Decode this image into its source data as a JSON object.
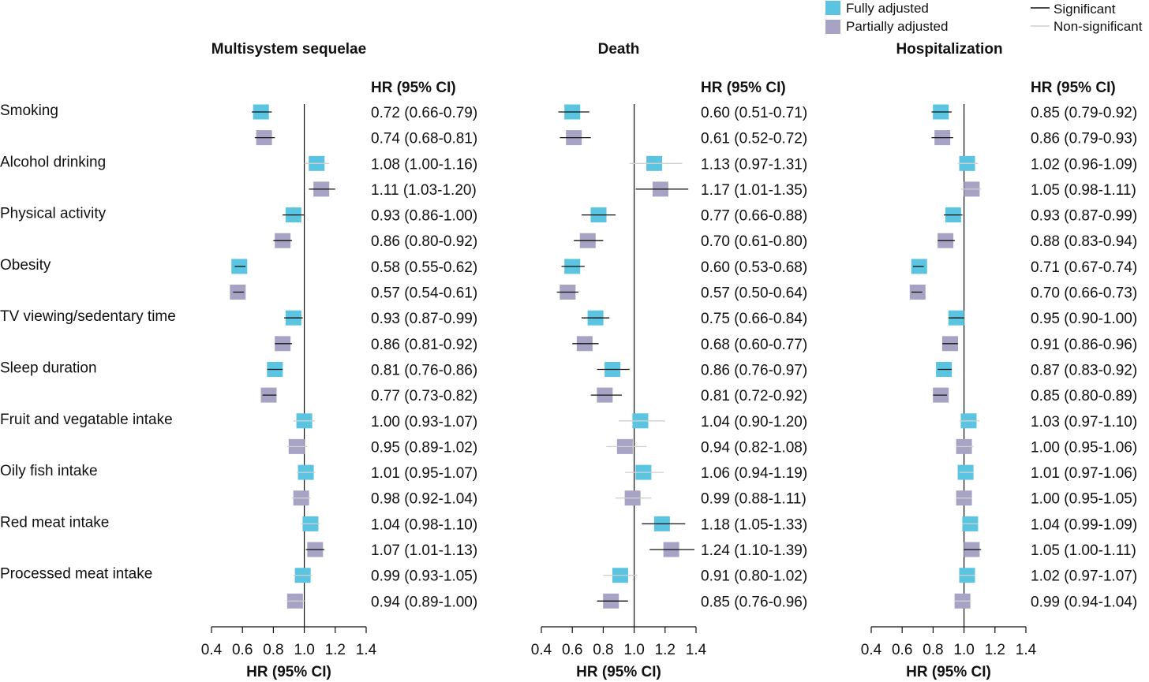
{
  "legend": {
    "fill_items": [
      {
        "label": "Fully adjusted",
        "color": "#5bc4e0"
      },
      {
        "label": "Partially adjusted",
        "color": "#a6a3c4"
      }
    ],
    "line_items": [
      {
        "label": "Significant",
        "color": "#111111"
      },
      {
        "label": "Non-significant",
        "color": "#cfcfcf"
      }
    ]
  },
  "row_labels": [
    "Smoking",
    "Alcohol drinking",
    "Physical activity",
    "Obesity",
    "TV viewing/sedentary time",
    "Sleep duration",
    "Fruit and vegatable intake",
    "Oily fish intake",
    "Red meat intake",
    "Processed meat intake"
  ],
  "chart_data": [
    {
      "type": "forest",
      "title": "Multisystem sequelae",
      "table_header": "HR (95% CI)",
      "xlabel": "HR (95% CI)",
      "xlim": [
        0.4,
        1.4
      ],
      "xticks": [
        "0.4",
        "0.6",
        "0.8",
        "1.0",
        "1.2",
        "1.4"
      ],
      "reference_line": 1.0,
      "series": [
        {
          "name": "Fully adjusted",
          "hr": [
            0.72,
            1.08,
            0.93,
            0.58,
            0.93,
            0.81,
            1.0,
            1.01,
            1.04,
            0.99
          ],
          "lo": [
            0.66,
            1.0,
            0.86,
            0.55,
            0.87,
            0.76,
            0.93,
            0.95,
            0.98,
            0.93
          ],
          "hi": [
            0.79,
            1.16,
            1.0,
            0.62,
            0.99,
            0.86,
            1.07,
            1.07,
            1.1,
            1.05
          ],
          "significant": [
            true,
            false,
            true,
            true,
            true,
            true,
            false,
            false,
            false,
            false
          ],
          "labels": [
            "0.72 (0.66-0.79)",
            "1.08 (1.00-1.16)",
            "0.93 (0.86-1.00)",
            "0.58 (0.55-0.62)",
            "0.93 (0.87-0.99)",
            "0.81 (0.76-0.86)",
            "1.00 (0.93-1.07)",
            "1.01 (0.95-1.07)",
            "1.04 (0.98-1.10)",
            "0.99 (0.93-1.05)"
          ]
        },
        {
          "name": "Partially adjusted",
          "hr": [
            0.74,
            1.11,
            0.86,
            0.57,
            0.86,
            0.77,
            0.95,
            0.98,
            1.07,
            0.94
          ],
          "lo": [
            0.68,
            1.03,
            0.8,
            0.54,
            0.81,
            0.73,
            0.89,
            0.92,
            1.01,
            0.89
          ],
          "hi": [
            0.81,
            1.2,
            0.92,
            0.61,
            0.92,
            0.82,
            1.02,
            1.04,
            1.13,
            1.0
          ],
          "significant": [
            true,
            true,
            true,
            true,
            true,
            true,
            false,
            false,
            true,
            false
          ],
          "labels": [
            "0.74 (0.68-0.81)",
            "1.11 (1.03-1.20)",
            "0.86 (0.80-0.92)",
            "0.57 (0.54-0.61)",
            "0.86 (0.81-0.92)",
            "0.77 (0.73-0.82)",
            "0.95 (0.89-1.02)",
            "0.98 (0.92-1.04)",
            "1.07 (1.01-1.13)",
            "0.94 (0.89-1.00)"
          ]
        }
      ]
    },
    {
      "type": "forest",
      "title": "Death",
      "table_header": "HR (95% CI)",
      "xlabel": "HR (95% CI)",
      "xlim": [
        0.4,
        1.4
      ],
      "xticks": [
        "0.4",
        "0.6",
        "0.8",
        "1.0",
        "1.2",
        "1.4"
      ],
      "reference_line": 1.0,
      "series": [
        {
          "name": "Fully adjusted",
          "hr": [
            0.6,
            1.13,
            0.77,
            0.6,
            0.75,
            0.86,
            1.04,
            1.06,
            1.18,
            0.91
          ],
          "lo": [
            0.51,
            0.97,
            0.66,
            0.53,
            0.66,
            0.76,
            0.9,
            0.94,
            1.05,
            0.8
          ],
          "hi": [
            0.71,
            1.31,
            0.88,
            0.68,
            0.84,
            0.97,
            1.2,
            1.19,
            1.33,
            1.02
          ],
          "significant": [
            true,
            false,
            true,
            true,
            true,
            true,
            false,
            false,
            true,
            false
          ],
          "labels": [
            "0.60 (0.51-0.71)",
            "1.13 (0.97-1.31)",
            "0.77 (0.66-0.88)",
            "0.60 (0.53-0.68)",
            "0.75 (0.66-0.84)",
            "0.86 (0.76-0.97)",
            "1.04 (0.90-1.20)",
            "1.06 (0.94-1.19)",
            "1.18 (1.05-1.33)",
            "0.91 (0.80-1.02)"
          ]
        },
        {
          "name": "Partially adjusted",
          "hr": [
            0.61,
            1.17,
            0.7,
            0.57,
            0.68,
            0.81,
            0.94,
            0.99,
            1.24,
            0.85
          ],
          "lo": [
            0.52,
            1.01,
            0.61,
            0.5,
            0.6,
            0.72,
            0.82,
            0.88,
            1.1,
            0.76
          ],
          "hi": [
            0.72,
            1.35,
            0.8,
            0.64,
            0.77,
            0.92,
            1.08,
            1.11,
            1.39,
            0.96
          ],
          "significant": [
            true,
            true,
            true,
            true,
            true,
            true,
            false,
            false,
            true,
            true
          ],
          "labels": [
            "0.61 (0.52-0.72)",
            "1.17 (1.01-1.35)",
            "0.70 (0.61-0.80)",
            "0.57 (0.50-0.64)",
            "0.68 (0.60-0.77)",
            "0.81 (0.72-0.92)",
            "0.94 (0.82-1.08)",
            "0.99 (0.88-1.11)",
            "1.24 (1.10-1.39)",
            "0.85 (0.76-0.96)"
          ]
        }
      ]
    },
    {
      "type": "forest",
      "title": "Hospitalization",
      "table_header": "HR (95% CI)",
      "xlabel": "HR (95% CI)",
      "xlim": [
        0.4,
        1.4
      ],
      "xticks": [
        "0.4",
        "0.6",
        "0.8",
        "1.0",
        "1.2",
        "1.4"
      ],
      "reference_line": 1.0,
      "series": [
        {
          "name": "Fully adjusted",
          "hr": [
            0.85,
            1.02,
            0.93,
            0.71,
            0.95,
            0.87,
            1.03,
            1.01,
            1.04,
            1.02
          ],
          "lo": [
            0.79,
            0.96,
            0.87,
            0.67,
            0.9,
            0.83,
            0.97,
            0.97,
            0.99,
            0.97
          ],
          "hi": [
            0.92,
            1.09,
            0.99,
            0.74,
            1.0,
            0.92,
            1.1,
            1.06,
            1.09,
            1.07
          ],
          "significant": [
            true,
            false,
            true,
            true,
            true,
            true,
            false,
            false,
            false,
            false
          ],
          "labels": [
            "0.85 (0.79-0.92)",
            "1.02 (0.96-1.09)",
            "0.93 (0.87-0.99)",
            "0.71 (0.67-0.74)",
            "0.95 (0.90-1.00)",
            "0.87 (0.83-0.92)",
            "1.03 (0.97-1.10)",
            "1.01 (0.97-1.06)",
            "1.04 (0.99-1.09)",
            "1.02 (0.97-1.07)"
          ]
        },
        {
          "name": "Partially adjusted",
          "hr": [
            0.86,
            1.05,
            0.88,
            0.7,
            0.91,
            0.85,
            1.0,
            1.0,
            1.05,
            0.99
          ],
          "lo": [
            0.79,
            0.98,
            0.83,
            0.66,
            0.86,
            0.8,
            0.95,
            0.95,
            1.0,
            0.94
          ],
          "hi": [
            0.93,
            1.11,
            0.94,
            0.73,
            0.96,
            0.89,
            1.06,
            1.05,
            1.11,
            1.04
          ],
          "significant": [
            true,
            false,
            true,
            true,
            true,
            true,
            false,
            false,
            true,
            false
          ],
          "labels": [
            "0.86 (0.79-0.93)",
            "1.05 (0.98-1.11)",
            "0.88 (0.83-0.94)",
            "0.70 (0.66-0.73)",
            "0.91 (0.86-0.96)",
            "0.85 (0.80-0.89)",
            "1.00 (0.95-1.06)",
            "1.00 (0.95-1.05)",
            "1.05 (1.00-1.11)",
            "0.99 (0.94-1.04)"
          ]
        }
      ]
    }
  ]
}
